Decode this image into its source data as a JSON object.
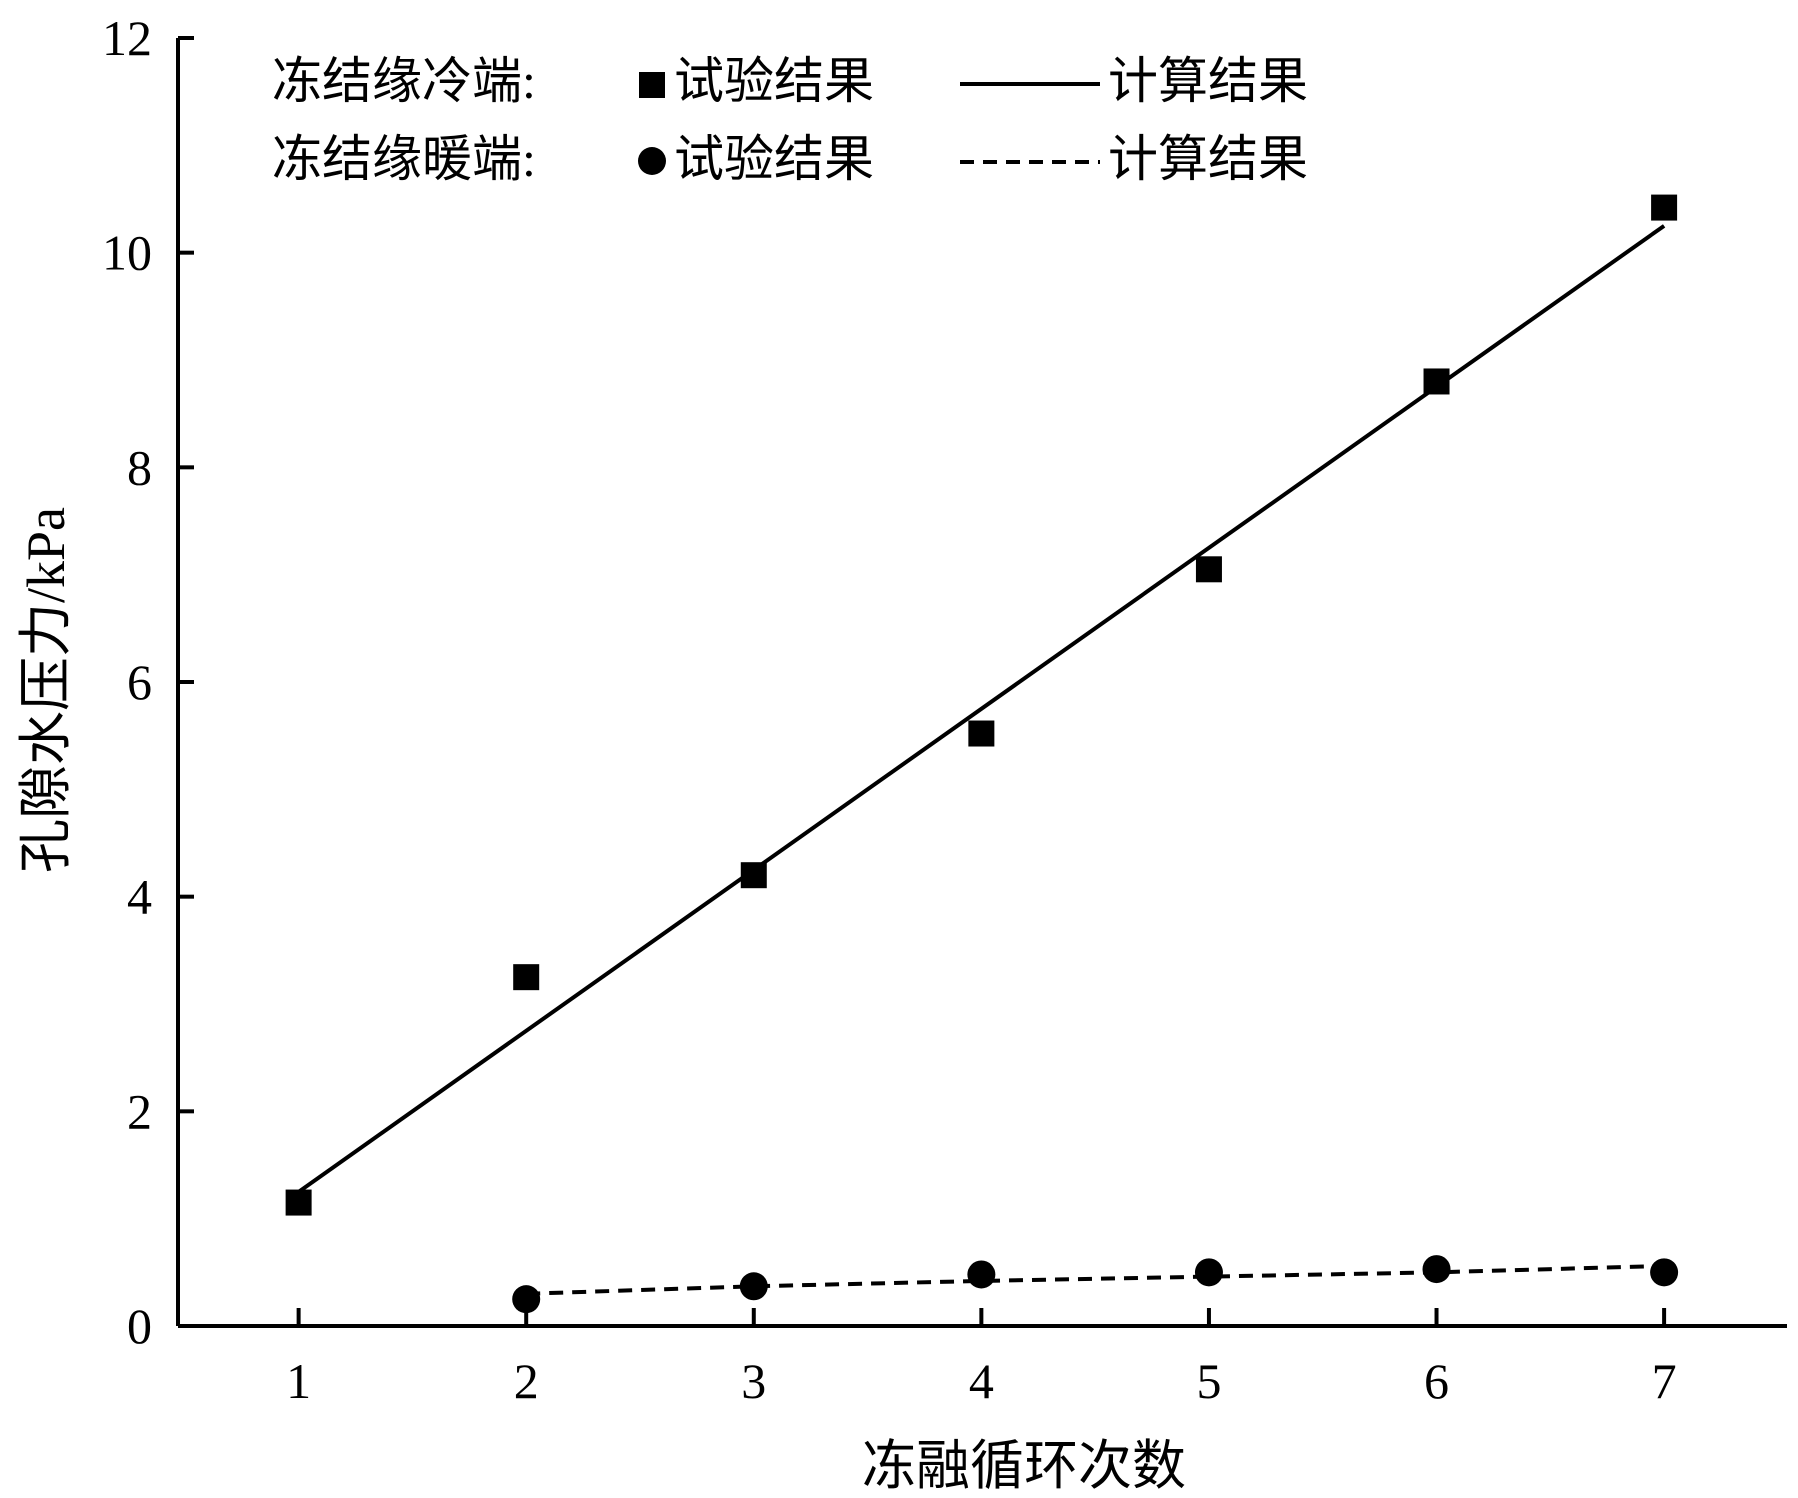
{
  "chart_data": {
    "type": "scatter",
    "xlabel": "冻融循环次数",
    "ylabel": "孔隙水压力/kPa",
    "xlim": [
      0.47,
      7.54
    ],
    "ylim": [
      0,
      12
    ],
    "xticks": [
      1,
      2,
      3,
      4,
      5,
      6,
      7
    ],
    "yticks": [
      0,
      2,
      4,
      6,
      8,
      10,
      12
    ],
    "grid": false,
    "legend_position": "top-left",
    "legend": {
      "rows": [
        {
          "label": "冻结缘冷端:",
          "marker_label": "试验结果",
          "line_label": "计算结果"
        },
        {
          "label": "冻结缘暖端:",
          "marker_label": "试验结果",
          "line_label": "计算结果"
        }
      ]
    },
    "series": [
      {
        "group": "冻结缘冷端",
        "kind": "试验结果",
        "marker": "square",
        "x": [
          1,
          2,
          3,
          4,
          5,
          6,
          7
        ],
        "y": [
          1.15,
          3.25,
          4.2,
          5.52,
          7.05,
          8.8,
          10.42
        ]
      },
      {
        "group": "冻结缘冷端",
        "kind": "计算结果",
        "line": "solid",
        "x": [
          1,
          7
        ],
        "y": [
          1.25,
          10.25
        ]
      },
      {
        "group": "冻结缘暖端",
        "kind": "试验结果",
        "marker": "circle",
        "x": [
          2,
          3,
          4,
          5,
          6,
          7
        ],
        "y": [
          0.25,
          0.37,
          0.48,
          0.5,
          0.53,
          0.5
        ]
      },
      {
        "group": "冻结缘暖端",
        "kind": "计算结果",
        "line": "dashed",
        "x": [
          2,
          3,
          4,
          5,
          6,
          7
        ],
        "y": [
          0.3,
          0.37,
          0.42,
          0.46,
          0.5,
          0.56
        ]
      }
    ]
  }
}
